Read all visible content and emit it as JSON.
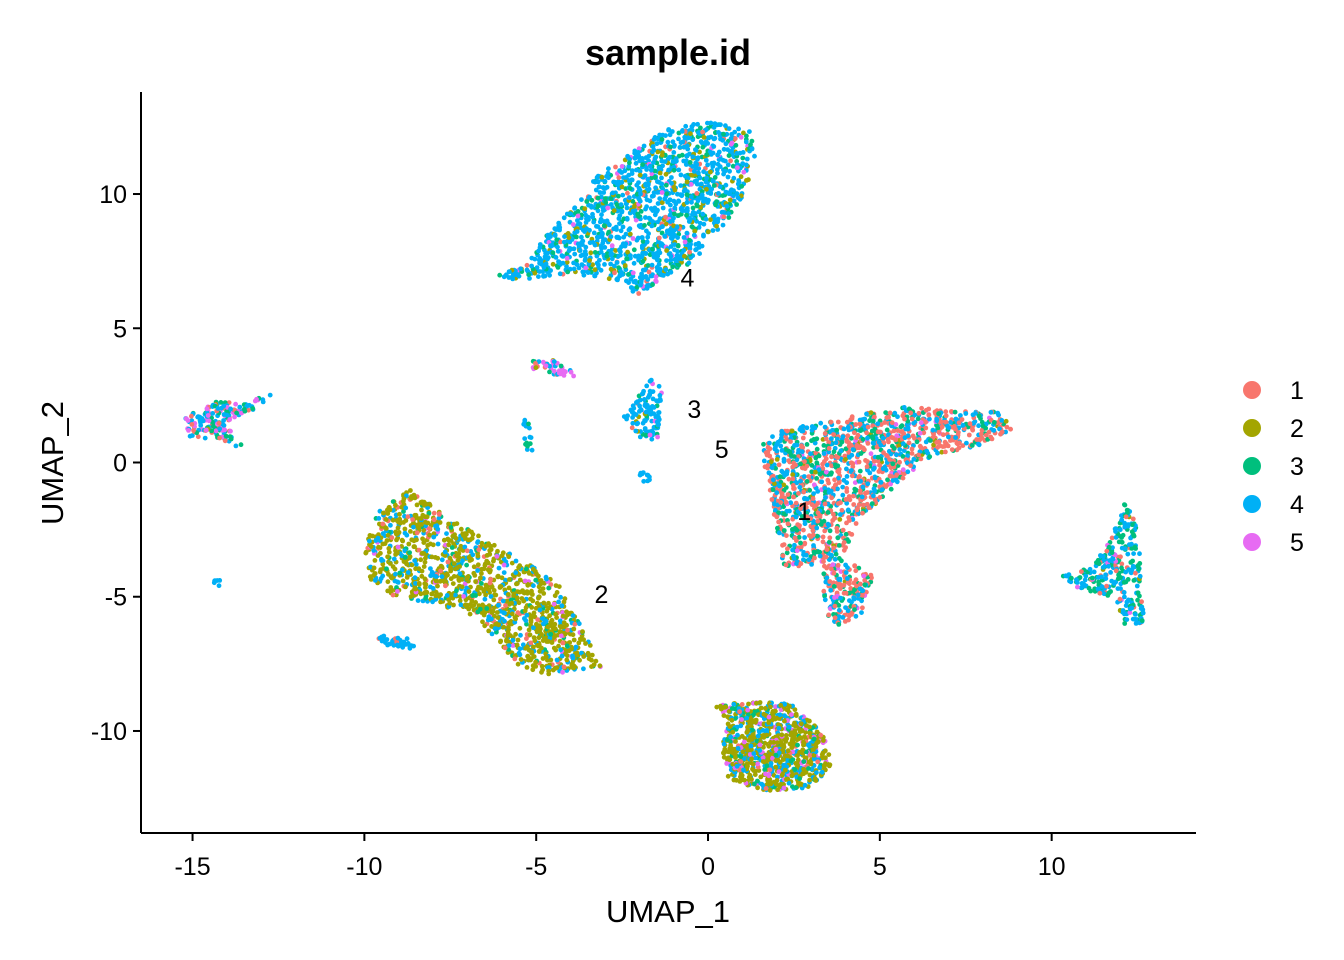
{
  "chart_data": {
    "type": "scatter",
    "title": "sample.id",
    "xlabel": "UMAP_1",
    "ylabel": "UMAP_2",
    "xlim": [
      -16.5,
      14.2
    ],
    "ylim": [
      -13.8,
      13.8
    ],
    "x_ticks": [
      -15,
      -10,
      -5,
      0,
      5,
      10
    ],
    "x_tick_labels": [
      "-15",
      "-10",
      "-5",
      "0",
      "5",
      "10"
    ],
    "y_ticks": [
      -10,
      -5,
      0,
      5,
      10
    ],
    "y_tick_labels": [
      "-10",
      "-5",
      "0",
      "5",
      "10"
    ],
    "grid": false,
    "legend_position": "right",
    "series": [
      {
        "name": "1",
        "color": "#F8766D"
      },
      {
        "name": "2",
        "color": "#A3A500"
      },
      {
        "name": "3",
        "color": "#00BF7D"
      },
      {
        "name": "4",
        "color": "#00B0F6"
      },
      {
        "name": "5",
        "color": "#E76BF3"
      }
    ],
    "cluster_labels": [
      {
        "text": "1",
        "x": 2.8,
        "y": -1.8
      },
      {
        "text": "2",
        "x": -3.1,
        "y": -4.9
      },
      {
        "text": "3",
        "x": -0.4,
        "y": 2.0
      },
      {
        "text": "4",
        "x": -0.6,
        "y": 6.9
      },
      {
        "text": "5",
        "x": 0.4,
        "y": 0.5
      }
    ],
    "clusters": [
      {
        "name": "top",
        "polygon": [
          [
            -6.2,
            6.9
          ],
          [
            -5.2,
            7.5
          ],
          [
            -4.6,
            8.7
          ],
          [
            -3.8,
            9.7
          ],
          [
            -3.2,
            10.7
          ],
          [
            -2.2,
            11.6
          ],
          [
            -1.2,
            12.4
          ],
          [
            0,
            12.7
          ],
          [
            1.2,
            12.4
          ],
          [
            1.4,
            11.3
          ],
          [
            1.0,
            9.8
          ],
          [
            0.3,
            8.6
          ],
          [
            -0.4,
            7.5
          ],
          [
            -1.2,
            7.0
          ],
          [
            -2.0,
            6.2
          ],
          [
            -3.0,
            6.9
          ],
          [
            -4.4,
            7.0
          ],
          [
            -5.4,
            6.8
          ]
        ],
        "n": 1500,
        "mix": [
          0.04,
          0.1,
          0.16,
          0.66,
          0.04
        ]
      },
      {
        "name": "right-mid",
        "polygon": [
          [
            1.5,
            0.6
          ],
          [
            2.1,
            1.2
          ],
          [
            3.8,
            1.6
          ],
          [
            5.6,
            2.1
          ],
          [
            7.2,
            1.9
          ],
          [
            8.4,
            1.9
          ],
          [
            8.9,
            1.3
          ],
          [
            8.1,
            0.7
          ],
          [
            6.7,
            0.3
          ],
          [
            5.5,
            -0.8
          ],
          [
            4.4,
            -2.1
          ],
          [
            3.9,
            -3.5
          ],
          [
            4.8,
            -4.2
          ],
          [
            4.5,
            -5.6
          ],
          [
            3.8,
            -6.2
          ],
          [
            3.5,
            -5.7
          ],
          [
            3.2,
            -3.8
          ],
          [
            2.2,
            -3.9
          ],
          [
            2.0,
            -2.5
          ],
          [
            1.8,
            -1.0
          ]
        ],
        "n": 1600,
        "mix": [
          0.42,
          0.02,
          0.22,
          0.3,
          0.04
        ]
      },
      {
        "name": "left-mid",
        "polygon": [
          [
            -10,
            -3.3
          ],
          [
            -9.6,
            -1.8
          ],
          [
            -8.7,
            -1.0
          ],
          [
            -7.6,
            -2.0
          ],
          [
            -6.3,
            -3.0
          ],
          [
            -5.2,
            -3.8
          ],
          [
            -4.3,
            -4.6
          ],
          [
            -3.5,
            -6.6
          ],
          [
            -3.1,
            -7.6
          ],
          [
            -4.6,
            -7.9
          ],
          [
            -5.6,
            -7.6
          ],
          [
            -6.1,
            -6.6
          ],
          [
            -7.1,
            -5.5
          ],
          [
            -8.1,
            -5.3
          ],
          [
            -9.3,
            -4.9
          ],
          [
            -9.9,
            -4.3
          ]
        ],
        "n": 1300,
        "mix": [
          0.06,
          0.62,
          0.06,
          0.22,
          0.04
        ]
      },
      {
        "name": "bottom",
        "polygon": [
          [
            0.1,
            -9.0
          ],
          [
            1.5,
            -8.9
          ],
          [
            2.4,
            -9.0
          ],
          [
            3.4,
            -10.1
          ],
          [
            3.6,
            -11.3
          ],
          [
            3.0,
            -12.1
          ],
          [
            1.8,
            -12.3
          ],
          [
            0.6,
            -11.8
          ],
          [
            0.4,
            -10.6
          ],
          [
            0.6,
            -9.6
          ]
        ],
        "n": 900,
        "mix": [
          0.03,
          0.55,
          0.1,
          0.22,
          0.1
        ]
      },
      {
        "name": "far-right",
        "polygon": [
          [
            10.3,
            -4.2
          ],
          [
            11.2,
            -3.9
          ],
          [
            11.8,
            -2.6
          ],
          [
            12.1,
            -1.5
          ],
          [
            12.5,
            -2.2
          ],
          [
            12.6,
            -4.3
          ],
          [
            12.7,
            -6.2
          ],
          [
            12.1,
            -6.0
          ],
          [
            11.8,
            -5.0
          ],
          [
            10.5,
            -4.6
          ]
        ],
        "n": 300,
        "mix": [
          0.08,
          0.02,
          0.35,
          0.5,
          0.05
        ]
      },
      {
        "name": "far-left",
        "polygon": [
          [
            -15.2,
            1.7
          ],
          [
            -14.4,
            2.3
          ],
          [
            -13.6,
            2.2
          ],
          [
            -12.6,
            2.6
          ],
          [
            -13.4,
            1.8
          ],
          [
            -14.1,
            1.5
          ],
          [
            -13.4,
            0.4
          ],
          [
            -14.2,
            0.9
          ],
          [
            -15.0,
            0.9
          ],
          [
            -15.3,
            1.2
          ]
        ],
        "n": 170,
        "mix": [
          0.12,
          0.04,
          0.3,
          0.34,
          0.2
        ]
      },
      {
        "name": "small-3",
        "polygon": [
          [
            -2.5,
            1.6
          ],
          [
            -2.1,
            2.4
          ],
          [
            -1.6,
            3.2
          ],
          [
            -1.3,
            2.6
          ],
          [
            -1.4,
            1.2
          ],
          [
            -1.5,
            0.8
          ],
          [
            -2.2,
            1.0
          ]
        ],
        "n": 110,
        "mix": [
          0.02,
          0.02,
          0.1,
          0.82,
          0.04
        ]
      },
      {
        "name": "small-5",
        "polygon": [
          [
            -5.1,
            3.8
          ],
          [
            -4.5,
            3.8
          ],
          [
            -4.0,
            3.5
          ],
          [
            -3.9,
            3.2
          ],
          [
            -4.6,
            3.3
          ],
          [
            -5.1,
            3.5
          ]
        ],
        "n": 45,
        "mix": [
          0.1,
          0.1,
          0.1,
          0.1,
          0.6
        ]
      },
      {
        "name": "small-stick",
        "polygon": [
          [
            -5.4,
            1.6
          ],
          [
            -5.2,
            1.6
          ],
          [
            -5.1,
            0.4
          ],
          [
            -5.3,
            0.4
          ]
        ],
        "n": 16,
        "mix": [
          0,
          0,
          0.15,
          0.85,
          0
        ]
      },
      {
        "name": "small-dot",
        "polygon": [
          [
            -2.0,
            -0.3
          ],
          [
            -1.7,
            -0.3
          ],
          [
            -1.7,
            -0.8
          ],
          [
            -2.0,
            -0.8
          ]
        ],
        "n": 10,
        "mix": [
          0,
          0,
          0,
          1,
          0
        ]
      },
      {
        "name": "small-left",
        "polygon": [
          [
            -9.8,
            -6.4
          ],
          [
            -8.5,
            -6.6
          ],
          [
            -8.6,
            -7.0
          ],
          [
            -9.5,
            -6.8
          ]
        ],
        "n": 45,
        "mix": [
          0.05,
          0,
          0,
          0.95,
          0
        ]
      },
      {
        "name": "small-farleft",
        "polygon": [
          [
            -14.4,
            -4.3
          ],
          [
            -14.2,
            -4.3
          ],
          [
            -14.2,
            -4.6
          ],
          [
            -14.4,
            -4.6
          ]
        ],
        "n": 6,
        "mix": [
          0,
          0,
          0,
          1,
          0
        ]
      }
    ]
  }
}
